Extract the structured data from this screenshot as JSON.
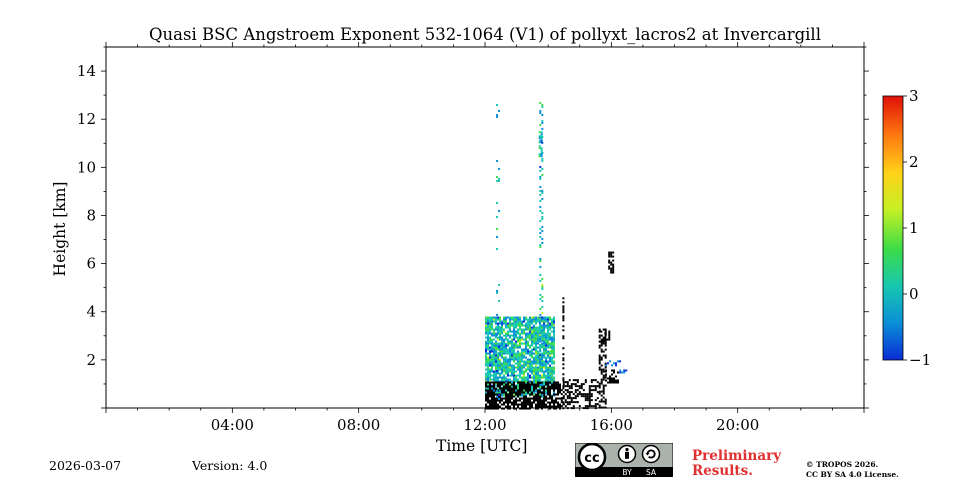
{
  "chart_data": {
    "type": "heatmap",
    "title": "Quasi BSC Angstroem Exponent 532-1064 (V1) of pollyxt_lacros2 at Invercargill",
    "xlabel": "Time [UTC]",
    "ylabel": "Height [km]",
    "xlim_hours": [
      0,
      24
    ],
    "ylim_km": [
      0,
      15
    ],
    "x_ticks": [
      {
        "hour": 4,
        "label": "04:00"
      },
      {
        "hour": 8,
        "label": "08:00"
      },
      {
        "hour": 12,
        "label": "12:00"
      },
      {
        "hour": 16,
        "label": "16:00"
      },
      {
        "hour": 20,
        "label": "20:00"
      }
    ],
    "y_ticks": [
      {
        "value": 2,
        "label": "2"
      },
      {
        "value": 4,
        "label": "4"
      },
      {
        "value": 6,
        "label": "6"
      },
      {
        "value": 8,
        "label": "8"
      },
      {
        "value": 10,
        "label": "10"
      },
      {
        "value": 12,
        "label": "12"
      },
      {
        "value": 14,
        "label": "14"
      }
    ],
    "colorbar": {
      "range": [
        -1,
        3
      ],
      "ticks": [
        {
          "value": 3,
          "label": "3"
        },
        {
          "value": 2,
          "label": "2"
        },
        {
          "value": 1,
          "label": "1"
        },
        {
          "value": 0,
          "label": "0"
        },
        {
          "value": -1,
          "label": "−1"
        }
      ],
      "colors": [
        "#0a2bd6",
        "#0a8fd6",
        "#17c7b0",
        "#3ddc48",
        "#c6f023",
        "#ffd21a",
        "#ff7a10",
        "#e01008"
      ]
    },
    "field_regions": [
      {
        "t0": 12.0,
        "t1": 14.2,
        "h0": 0.5,
        "h1": 3.8,
        "kind": "color",
        "mean": 0.2,
        "spread": 0.5,
        "density": 0.85
      },
      {
        "t0": 12.0,
        "t1": 14.4,
        "h0": 0.0,
        "h1": 1.1,
        "kind": "black",
        "density": 0.75
      },
      {
        "t0": 14.4,
        "t1": 15.6,
        "h0": 0.0,
        "h1": 1.2,
        "kind": "black",
        "density": 0.45
      },
      {
        "t0": 15.6,
        "t1": 15.85,
        "h0": 0.0,
        "h1": 3.3,
        "kind": "black",
        "density": 0.55
      },
      {
        "t0": 15.65,
        "t1": 15.95,
        "h0": 2.8,
        "h1": 3.3,
        "kind": "black",
        "density": 0.35
      },
      {
        "t0": 15.8,
        "t1": 16.25,
        "h0": 1.8,
        "h1": 1.98,
        "kind": "color",
        "mean": -0.4,
        "spread": 0.3,
        "density": 0.6
      },
      {
        "t0": 16.25,
        "t1": 16.45,
        "h0": 1.5,
        "h1": 1.6,
        "kind": "color",
        "mean": -0.5,
        "spread": 0.3,
        "density": 0.6
      },
      {
        "t0": 15.8,
        "t1": 16.2,
        "h0": 1.1,
        "h1": 1.6,
        "kind": "black",
        "density": 0.5
      },
      {
        "t0": 15.9,
        "t1": 16.05,
        "h0": 5.6,
        "h1": 6.5,
        "kind": "black",
        "density": 0.6
      },
      {
        "t0": 12.35,
        "t1": 12.42,
        "h0": 0.2,
        "h1": 12.8,
        "kind": "color",
        "mean": 0.0,
        "spread": 0.4,
        "density": 0.12
      },
      {
        "t0": 13.72,
        "t1": 13.8,
        "h0": 0.5,
        "h1": 12.8,
        "kind": "color",
        "mean": 0.3,
        "spread": 0.5,
        "density": 0.25
      },
      {
        "t0": 13.7,
        "t1": 13.82,
        "h0": 10.5,
        "h1": 11.5,
        "kind": "color",
        "mean": 0.2,
        "spread": 0.5,
        "density": 0.85
      },
      {
        "t0": 14.45,
        "t1": 14.5,
        "h0": 0.0,
        "h1": 4.6,
        "kind": "black",
        "density": 0.4
      }
    ]
  },
  "footer": {
    "date": "2026-03-07",
    "version": "Version: 4.0",
    "badge_cc": "cc",
    "badge_by": "BY",
    "badge_sa": "SA",
    "preliminary_line1": "Preliminary",
    "preliminary_line2": "Results.",
    "copyright_line1": "© TROPOS 2026.",
    "copyright_line2": "CC BY SA 4.0 License."
  }
}
